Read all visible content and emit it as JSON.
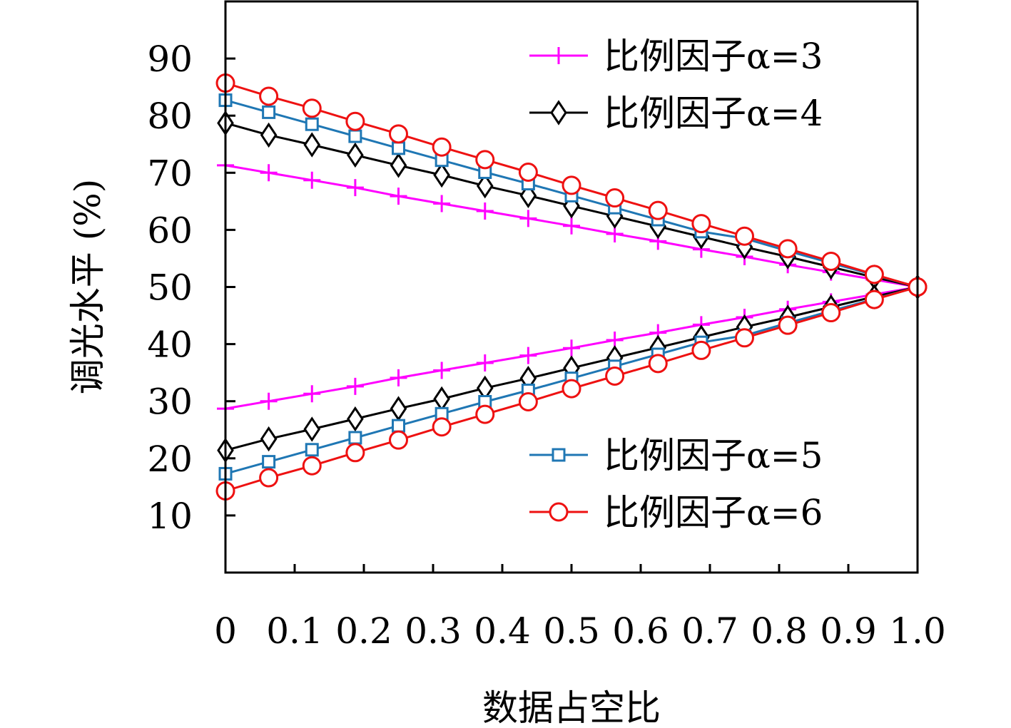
{
  "chart_data": {
    "type": "line",
    "title": "",
    "xlabel": "数据占空比",
    "ylabel": "调光水平 (%)",
    "xlim": [
      0,
      1.0
    ],
    "ylim": [
      0,
      100
    ],
    "x_ticks": [
      0,
      0.1,
      0.2,
      0.3,
      0.4,
      0.5,
      0.6,
      0.7,
      0.8,
      0.9,
      1.0
    ],
    "x_tick_labels": [
      "0",
      "0.1",
      "0.2",
      "0.3",
      "0.4",
      "0.5",
      "0.6",
      "0.7",
      "0.8",
      "0.9",
      "1.0"
    ],
    "y_ticks": [
      10,
      20,
      30,
      40,
      50,
      60,
      70,
      80,
      90
    ],
    "y_tick_labels": [
      "10",
      "20",
      "30",
      "40",
      "50",
      "60",
      "70",
      "80",
      "90"
    ],
    "grid": false,
    "legends": [
      {
        "placement": "top-right",
        "entries": [
          "比例因子α=3",
          "比例因子α=4"
        ]
      },
      {
        "placement": "bottom-right",
        "entries": [
          "比例因子α=5",
          "比例因子α=6"
        ]
      }
    ],
    "series": [
      {
        "name": "比例因子α=3",
        "branch": "upper",
        "color": "#ff00ff",
        "marker": "plus",
        "x": [
          0,
          0.0625,
          0.125,
          0.1875,
          0.25,
          0.3125,
          0.375,
          0.4375,
          0.5,
          0.5625,
          0.625,
          0.6875,
          0.75,
          0.8125,
          0.875,
          0.9375,
          1.0
        ],
        "y": [
          71.3,
          70,
          68.7,
          67.4,
          65.9,
          64.6,
          63.3,
          62,
          60.7,
          59.3,
          58,
          56.6,
          55.3,
          53.9,
          52.6,
          51.3,
          50
        ]
      },
      {
        "name": "比例因子α=3",
        "branch": "lower",
        "color": "#ff00ff",
        "marker": "plus",
        "x": [
          0,
          0.0625,
          0.125,
          0.1875,
          0.25,
          0.3125,
          0.375,
          0.4375,
          0.5,
          0.5625,
          0.625,
          0.6875,
          0.75,
          0.8125,
          0.875,
          0.9375,
          1.0
        ],
        "y": [
          28.7,
          30,
          31.3,
          32.6,
          34.1,
          35.4,
          36.7,
          38,
          39.3,
          40.7,
          42,
          43.4,
          44.7,
          46.1,
          47.4,
          48.7,
          50
        ]
      },
      {
        "name": "比例因子α=4",
        "branch": "upper",
        "color": "#000000",
        "marker": "diamond",
        "x": [
          0,
          0.0625,
          0.125,
          0.1875,
          0.25,
          0.3125,
          0.375,
          0.4375,
          0.5,
          0.5625,
          0.625,
          0.6875,
          0.75,
          0.8125,
          0.875,
          0.9375,
          1.0
        ],
        "y": [
          78.7,
          76.6,
          74.9,
          73.1,
          71.3,
          69.6,
          67.7,
          66,
          64.2,
          62.4,
          60.6,
          58.8,
          57,
          55.3,
          53.5,
          51.7,
          50
        ]
      },
      {
        "name": "比例因子α=4",
        "branch": "lower",
        "color": "#000000",
        "marker": "diamond",
        "x": [
          0,
          0.0625,
          0.125,
          0.1875,
          0.25,
          0.3125,
          0.375,
          0.4375,
          0.5,
          0.5625,
          0.625,
          0.6875,
          0.75,
          0.8125,
          0.875,
          0.9375,
          1.0
        ],
        "y": [
          21.4,
          23.4,
          25.1,
          26.9,
          28.7,
          30.4,
          32.3,
          34,
          35.8,
          37.6,
          39.4,
          41.2,
          43,
          44.7,
          46.5,
          48.3,
          50
        ]
      },
      {
        "name": "比例因子α=5",
        "branch": "upper",
        "color": "#1f77b4",
        "marker": "square",
        "x": [
          0,
          0.0625,
          0.125,
          0.1875,
          0.25,
          0.3125,
          0.375,
          0.4375,
          0.5,
          0.5625,
          0.625,
          0.6875,
          0.75,
          0.8125,
          0.875,
          0.9375,
          1.0
        ],
        "y": [
          82.7,
          80.6,
          78.5,
          76.4,
          74.3,
          72.2,
          70.1,
          68.1,
          66,
          63.9,
          61.8,
          59.7,
          58.5,
          56.3,
          54.2,
          52.1,
          50
        ]
      },
      {
        "name": "比例因子α=5",
        "branch": "lower",
        "color": "#1f77b4",
        "marker": "square",
        "x": [
          0,
          0.0625,
          0.125,
          0.1875,
          0.25,
          0.3125,
          0.375,
          0.4375,
          0.5,
          0.5625,
          0.625,
          0.6875,
          0.75,
          0.8125,
          0.875,
          0.9375,
          1.0
        ],
        "y": [
          17.3,
          19.4,
          21.5,
          23.6,
          25.7,
          27.8,
          29.9,
          31.9,
          34,
          36.1,
          38.2,
          40.3,
          41.5,
          43.7,
          45.8,
          47.9,
          50
        ]
      },
      {
        "name": "比例因子α=6",
        "branch": "upper",
        "color": "#ee1111",
        "marker": "circle",
        "x": [
          0,
          0.0625,
          0.125,
          0.1875,
          0.25,
          0.3125,
          0.375,
          0.4375,
          0.5,
          0.5625,
          0.625,
          0.6875,
          0.75,
          0.8125,
          0.875,
          0.9375,
          1.0
        ],
        "y": [
          85.7,
          83.4,
          81.3,
          79,
          76.8,
          74.5,
          72.3,
          70.1,
          67.8,
          65.6,
          63.4,
          61.1,
          58.9,
          56.7,
          54.5,
          52.2,
          50
        ]
      },
      {
        "name": "比例因子α=6",
        "branch": "lower",
        "color": "#ee1111",
        "marker": "circle",
        "x": [
          0,
          0.0625,
          0.125,
          0.1875,
          0.25,
          0.3125,
          0.375,
          0.4375,
          0.5,
          0.5625,
          0.625,
          0.6875,
          0.75,
          0.8125,
          0.875,
          0.9375,
          1.0
        ],
        "y": [
          14.3,
          16.6,
          18.7,
          21,
          23.2,
          25.5,
          27.7,
          29.9,
          32.2,
          34.4,
          36.6,
          38.9,
          41.1,
          43.3,
          45.5,
          47.8,
          50
        ]
      }
    ]
  }
}
